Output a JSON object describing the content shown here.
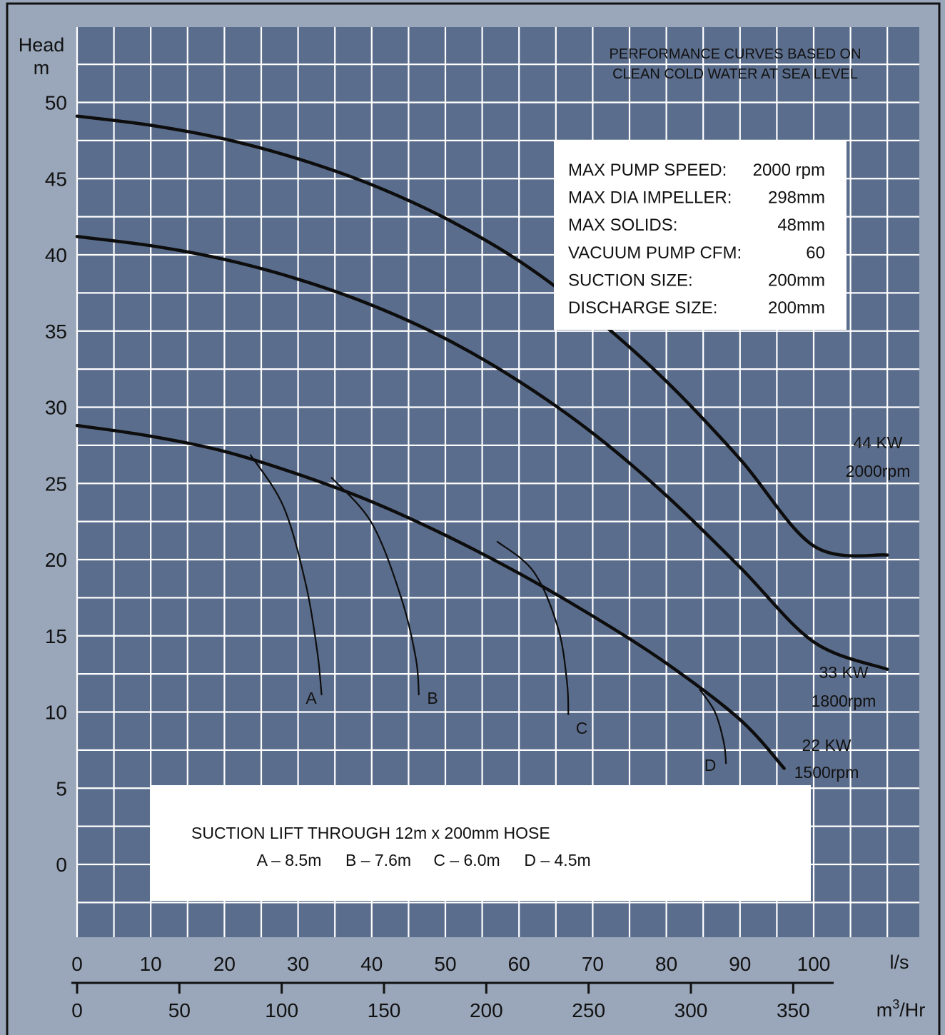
{
  "chart_data": {
    "type": "line",
    "title": "",
    "y_axis": {
      "label_line1": "Head",
      "label_line2": "m",
      "ticks": [
        "50",
        "45",
        "40",
        "35",
        "30",
        "25",
        "20",
        "15",
        "10",
        "5",
        "0"
      ],
      "range": [
        -5,
        51
      ]
    },
    "x_axis_ls": {
      "unit": "l/s",
      "ticks": [
        "0",
        "10",
        "20",
        "30",
        "40",
        "50",
        "60",
        "70",
        "80",
        "90",
        "100"
      ],
      "range": [
        0,
        111
      ]
    },
    "x_axis_m3hr": {
      "unit_base": "m",
      "unit_sup": "3",
      "unit_tail": "/Hr",
      "ticks": [
        "0",
        "50",
        "100",
        "150",
        "200",
        "250",
        "300",
        "350"
      ]
    },
    "note": {
      "line1": "PERFORMANCE CURVES BASED ON",
      "line2": "CLEAN COLD WATER AT SEA LEVEL"
    },
    "specs": [
      {
        "label": "MAX PUMP SPEED:",
        "value": "2000 rpm"
      },
      {
        "label": "MAX DIA IMPELLER:",
        "value": "298mm"
      },
      {
        "label": "MAX SOLIDS:",
        "value": "48mm"
      },
      {
        "label": "VACUUM PUMP CFM:",
        "value": "60"
      },
      {
        "label": "SUCTION SIZE:",
        "value": "200mm"
      },
      {
        "label": "DISCHARGE SIZE:",
        "value": "200mm"
      }
    ],
    "suction_box": {
      "line1": "SUCTION LIFT THROUGH 12m x 200mm HOSE",
      "items": [
        "A – 8.5m",
        "B – 7.6m",
        "C – 6.0m",
        "D – 4.5m"
      ]
    },
    "series": [
      {
        "power": "44 KW",
        "speed": "2000rpm",
        "points": [
          [
            0,
            49.1
          ],
          [
            10,
            48.5
          ],
          [
            20,
            47.6
          ],
          [
            30,
            46.3
          ],
          [
            40,
            44.6
          ],
          [
            50,
            42.4
          ],
          [
            60,
            39.6
          ],
          [
            70,
            36.0
          ],
          [
            80,
            31.7
          ],
          [
            90,
            26.6
          ],
          [
            100,
            20.9
          ],
          [
            110,
            20.3
          ]
        ]
      },
      {
        "power": "33 KW",
        "speed": "1800rpm",
        "points": [
          [
            0,
            41.2
          ],
          [
            10,
            40.6
          ],
          [
            20,
            39.7
          ],
          [
            30,
            38.4
          ],
          [
            40,
            36.7
          ],
          [
            50,
            34.5
          ],
          [
            60,
            31.7
          ],
          [
            70,
            28.3
          ],
          [
            80,
            24.2
          ],
          [
            90,
            19.5
          ],
          [
            100,
            14.6
          ],
          [
            110,
            12.8
          ]
        ]
      },
      {
        "power": "22 KW",
        "speed": "1500rpm",
        "points": [
          [
            0,
            28.8
          ],
          [
            10,
            28.1
          ],
          [
            20,
            27.1
          ],
          [
            30,
            25.6
          ],
          [
            40,
            23.8
          ],
          [
            50,
            21.6
          ],
          [
            60,
            19.1
          ],
          [
            70,
            16.3
          ],
          [
            80,
            13.2
          ],
          [
            90,
            9.5
          ],
          [
            96,
            6.3
          ]
        ]
      }
    ],
    "suction_curves": [
      {
        "name": "A",
        "points": [
          [
            23.5,
            26.9
          ],
          [
            28,
            23.5
          ],
          [
            31,
            18.5
          ],
          [
            32.6,
            14
          ],
          [
            33.2,
            11.1
          ]
        ]
      },
      {
        "name": "B",
        "points": [
          [
            34.5,
            25.4
          ],
          [
            40,
            22.4
          ],
          [
            44,
            17.5
          ],
          [
            46,
            13.5
          ],
          [
            46.4,
            11.1
          ]
        ]
      },
      {
        "name": "C",
        "points": [
          [
            57,
            21.2
          ],
          [
            62,
            19.2
          ],
          [
            65.3,
            15.5
          ],
          [
            66.5,
            12
          ],
          [
            66.7,
            9.8
          ]
        ]
      },
      {
        "name": "D",
        "points": [
          [
            84.5,
            11.5
          ],
          [
            86.6,
            10
          ],
          [
            87.8,
            8
          ],
          [
            88.1,
            6.6
          ]
        ]
      }
    ]
  }
}
